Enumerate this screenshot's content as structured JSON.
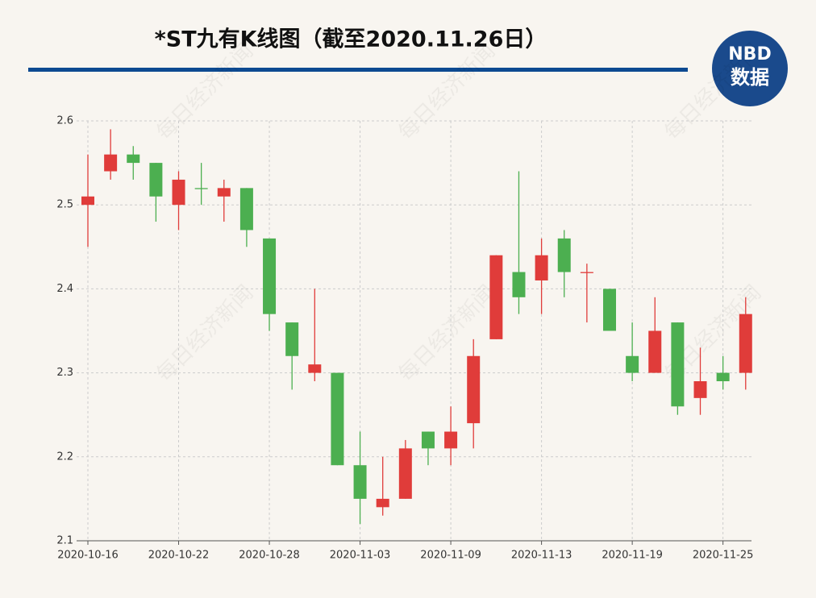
{
  "chart_data": {
    "type": "candlestick",
    "title": "*ST九有K线图（截至2020.11.26日）",
    "logo": {
      "top": "NBD",
      "bottom": "数据"
    },
    "watermark": "每日经济新闻",
    "categories": [
      "2020-10-16",
      null,
      null,
      null,
      "2020-10-22",
      null,
      null,
      null,
      "2020-10-28",
      null,
      null,
      null,
      "2020-11-03",
      null,
      null,
      null,
      "2020-11-09",
      null,
      null,
      null,
      "2020-11-13",
      null,
      null,
      null,
      "2020-11-19",
      null,
      null,
      null,
      "2020-11-25",
      null
    ],
    "open": [
      2.5,
      2.54,
      2.56,
      2.55,
      2.5,
      2.52,
      2.51,
      2.52,
      2.46,
      2.36,
      2.3,
      2.3,
      2.19,
      2.14,
      2.15,
      2.23,
      2.21,
      2.24,
      2.34,
      2.42,
      2.41,
      2.46,
      2.42,
      2.4,
      2.32,
      2.3,
      2.36,
      2.27,
      2.3,
      2.3
    ],
    "high": [
      2.56,
      2.59,
      2.57,
      2.55,
      2.54,
      2.55,
      2.53,
      2.52,
      2.46,
      2.36,
      2.4,
      2.3,
      2.23,
      2.2,
      2.22,
      2.23,
      2.26,
      2.34,
      2.44,
      2.54,
      2.46,
      2.47,
      2.43,
      2.4,
      2.36,
      2.39,
      2.36,
      2.33,
      2.32,
      2.39
    ],
    "low": [
      2.45,
      2.53,
      2.53,
      2.48,
      2.47,
      2.5,
      2.48,
      2.45,
      2.35,
      2.28,
      2.29,
      2.19,
      2.12,
      2.13,
      2.15,
      2.19,
      2.19,
      2.21,
      2.34,
      2.37,
      2.37,
      2.39,
      2.36,
      2.35,
      2.29,
      2.3,
      2.25,
      2.25,
      2.28,
      2.28
    ],
    "close": [
      2.51,
      2.56,
      2.55,
      2.51,
      2.53,
      2.52,
      2.52,
      2.47,
      2.37,
      2.32,
      2.31,
      2.19,
      2.15,
      2.15,
      2.21,
      2.21,
      2.23,
      2.32,
      2.44,
      2.39,
      2.44,
      2.42,
      2.42,
      2.35,
      2.3,
      2.35,
      2.26,
      2.29,
      2.29,
      2.37
    ],
    "colors": [
      "#e03c3a",
      "#e03c3a",
      "#4caf50",
      "#4caf50",
      "#e03c3a",
      "#4caf50",
      "#e03c3a",
      "#4caf50",
      "#4caf50",
      "#4caf50",
      "#e03c3a",
      "#4caf50",
      "#4caf50",
      "#e03c3a",
      "#e03c3a",
      "#4caf50",
      "#e03c3a",
      "#e03c3a",
      "#e03c3a",
      "#4caf50",
      "#e03c3a",
      "#4caf50",
      "#e03c3a",
      "#4caf50",
      "#4caf50",
      "#e03c3a",
      "#4caf50",
      "#e03c3a",
      "#4caf50",
      "#e03c3a"
    ],
    "ylim": [
      2.1,
      2.6
    ],
    "yticks": [
      2.1,
      2.2,
      2.3,
      2.4,
      2.5,
      2.6
    ],
    "grid": true
  }
}
